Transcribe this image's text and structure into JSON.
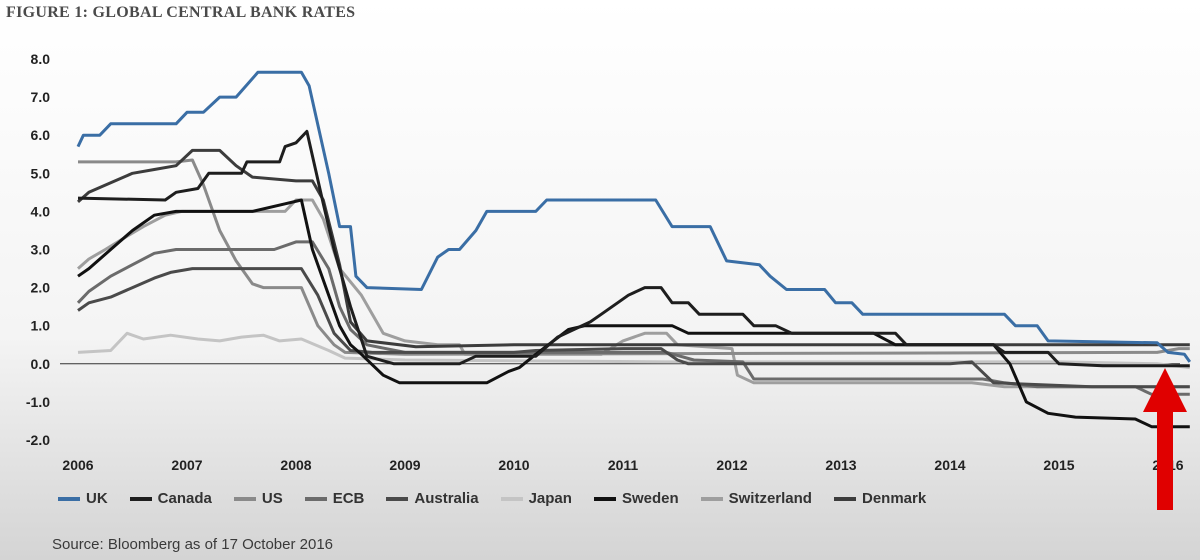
{
  "figure_title": "FIGURE 1: GLOBAL CENTRAL BANK RATES",
  "source": "Source: Bloomberg as of 17 October 2016",
  "colors": {
    "UK": "#3a6ea5",
    "Canada": "#1e1e1e",
    "US": "#8a8a8a",
    "ECB": "#6b6b6b",
    "Australia": "#4a4a4a",
    "Japan": "#c4c4c4",
    "Sweden": "#111111",
    "Switzerland": "#9e9e9e",
    "Denmark": "#3c3c3c",
    "annotation_arrow": "#e00000"
  },
  "chart_data": {
    "type": "line",
    "title": "FIGURE 1: GLOBAL CENTRAL BANK RATES",
    "xlabel": "",
    "ylabel": "",
    "xlim": [
      2006,
      2016.2
    ],
    "ylim": [
      -2,
      8
    ],
    "x_ticks": [
      "2006",
      "2007",
      "2008",
      "2009",
      "2010",
      "2011",
      "2012",
      "2013",
      "2014",
      "2015",
      "2016"
    ],
    "y_ticks": [
      "8.0",
      "7.0",
      "6.0",
      "5.0",
      "4.0",
      "3.0",
      "2.0",
      "1.0",
      "0.0",
      "-1.0",
      "-2.0"
    ],
    "grid": false,
    "legend_position": "bottom",
    "series": [
      {
        "name": "UK",
        "points": [
          [
            2006,
            5.7
          ],
          [
            2006.05,
            6.0
          ],
          [
            2006.2,
            6.0
          ],
          [
            2006.3,
            6.3
          ],
          [
            2006.9,
            6.3
          ],
          [
            2007.0,
            6.6
          ],
          [
            2007.15,
            6.6
          ],
          [
            2007.3,
            7.0
          ],
          [
            2007.45,
            7.0
          ],
          [
            2007.65,
            7.65
          ],
          [
            2008.05,
            7.65
          ],
          [
            2008.12,
            7.3
          ],
          [
            2008.3,
            5.0
          ],
          [
            2008.4,
            3.6
          ],
          [
            2008.5,
            3.6
          ],
          [
            2008.55,
            2.3
          ],
          [
            2008.65,
            2.0
          ],
          [
            2009.15,
            1.95
          ],
          [
            2009.3,
            2.8
          ],
          [
            2009.4,
            3.0
          ],
          [
            2009.5,
            3.0
          ],
          [
            2009.65,
            3.5
          ],
          [
            2009.75,
            4.0
          ],
          [
            2010.2,
            4.0
          ],
          [
            2010.3,
            4.3
          ],
          [
            2011.3,
            4.3
          ],
          [
            2011.45,
            3.6
          ],
          [
            2011.8,
            3.6
          ],
          [
            2011.95,
            2.7
          ],
          [
            2012.25,
            2.6
          ],
          [
            2012.35,
            2.3
          ],
          [
            2012.5,
            1.95
          ],
          [
            2012.85,
            1.95
          ],
          [
            2012.95,
            1.6
          ],
          [
            2013.1,
            1.6
          ],
          [
            2013.2,
            1.3
          ],
          [
            2014.5,
            1.3
          ],
          [
            2014.6,
            1.0
          ],
          [
            2014.8,
            1.0
          ],
          [
            2014.9,
            0.6
          ],
          [
            2015.9,
            0.55
          ],
          [
            2016.0,
            0.3
          ],
          [
            2016.15,
            0.25
          ],
          [
            2016.2,
            0.05
          ]
        ]
      },
      {
        "name": "Canada",
        "points": [
          [
            2006,
            4.35
          ],
          [
            2006.8,
            4.3
          ],
          [
            2006.9,
            4.5
          ],
          [
            2007.1,
            4.6
          ],
          [
            2007.2,
            5.0
          ],
          [
            2007.5,
            5.0
          ],
          [
            2007.55,
            5.3
          ],
          [
            2007.85,
            5.3
          ],
          [
            2007.9,
            5.7
          ],
          [
            2008.0,
            5.8
          ],
          [
            2008.1,
            6.1
          ],
          [
            2008.25,
            4.2
          ],
          [
            2008.35,
            3.0
          ],
          [
            2008.5,
            1.5
          ],
          [
            2008.65,
            0.2
          ],
          [
            2008.9,
            0.0
          ],
          [
            2009.35,
            0.0
          ],
          [
            2009.5,
            0.0
          ],
          [
            2009.65,
            0.2
          ],
          [
            2010.2,
            0.2
          ],
          [
            2010.4,
            0.7
          ],
          [
            2010.55,
            0.9
          ],
          [
            2010.7,
            1.1
          ],
          [
            2010.8,
            1.3
          ],
          [
            2010.95,
            1.6
          ],
          [
            2011.05,
            1.8
          ],
          [
            2011.2,
            2.0
          ],
          [
            2011.35,
            2.0
          ],
          [
            2011.45,
            1.6
          ],
          [
            2011.6,
            1.6
          ],
          [
            2011.7,
            1.3
          ],
          [
            2012.1,
            1.3
          ],
          [
            2012.2,
            1.0
          ],
          [
            2012.4,
            1.0
          ],
          [
            2012.55,
            0.8
          ],
          [
            2013.5,
            0.8
          ],
          [
            2013.6,
            0.5
          ],
          [
            2014.4,
            0.5
          ],
          [
            2014.5,
            0.3
          ],
          [
            2014.9,
            0.3
          ],
          [
            2015.0,
            0.0
          ],
          [
            2015.4,
            -0.05
          ],
          [
            2015.9,
            -0.05
          ],
          [
            2016.2,
            -0.05
          ]
        ]
      },
      {
        "name": "US",
        "points": [
          [
            2006,
            5.3
          ],
          [
            2006.9,
            5.3
          ],
          [
            2007.05,
            5.35
          ],
          [
            2007.15,
            4.7
          ],
          [
            2007.3,
            3.5
          ],
          [
            2007.45,
            2.7
          ],
          [
            2007.6,
            2.1
          ],
          [
            2007.7,
            2.0
          ],
          [
            2008.05,
            2.0
          ],
          [
            2008.2,
            1.0
          ],
          [
            2008.35,
            0.5
          ],
          [
            2008.45,
            0.3
          ],
          [
            2009.0,
            0.25
          ],
          [
            2015.9,
            0.3
          ],
          [
            2016.1,
            0.4
          ],
          [
            2016.2,
            0.4
          ]
        ]
      },
      {
        "name": "ECB",
        "points": [
          [
            2006,
            1.6
          ],
          [
            2006.1,
            1.9
          ],
          [
            2006.3,
            2.3
          ],
          [
            2006.5,
            2.6
          ],
          [
            2006.7,
            2.9
          ],
          [
            2006.9,
            3.0
          ],
          [
            2007.8,
            3.0
          ],
          [
            2008.0,
            3.2
          ],
          [
            2008.15,
            3.2
          ],
          [
            2008.3,
            2.5
          ],
          [
            2008.4,
            1.5
          ],
          [
            2008.5,
            0.9
          ],
          [
            2008.65,
            0.5
          ],
          [
            2009.0,
            0.3
          ],
          [
            2010.0,
            0.3
          ],
          [
            2011.2,
            0.3
          ],
          [
            2011.4,
            0.3
          ],
          [
            2011.65,
            0.1
          ],
          [
            2012.1,
            0.05
          ],
          [
            2012.2,
            -0.4
          ],
          [
            2014.3,
            -0.4
          ],
          [
            2014.5,
            -0.5
          ],
          [
            2014.8,
            -0.6
          ],
          [
            2015.7,
            -0.6
          ],
          [
            2015.85,
            -0.8
          ],
          [
            2016.2,
            -0.8
          ]
        ]
      },
      {
        "name": "Australia",
        "points": [
          [
            2006,
            1.4
          ],
          [
            2006.1,
            1.6
          ],
          [
            2006.3,
            1.75
          ],
          [
            2006.5,
            2.0
          ],
          [
            2006.7,
            2.25
          ],
          [
            2006.85,
            2.4
          ],
          [
            2007.05,
            2.5
          ],
          [
            2007.8,
            2.5
          ],
          [
            2008.05,
            2.5
          ],
          [
            2008.2,
            1.8
          ],
          [
            2008.35,
            0.8
          ],
          [
            2008.5,
            0.35
          ],
          [
            2008.7,
            0.3
          ],
          [
            2010.0,
            0.3
          ],
          [
            2010.2,
            0.35
          ],
          [
            2011.0,
            0.4
          ],
          [
            2011.35,
            0.4
          ],
          [
            2011.5,
            0.1
          ],
          [
            2011.6,
            0.0
          ],
          [
            2014.0,
            0.0
          ],
          [
            2014.2,
            0.05
          ],
          [
            2014.4,
            -0.5
          ],
          [
            2015.3,
            -0.6
          ],
          [
            2015.85,
            -0.6
          ],
          [
            2016.2,
            -0.6
          ]
        ]
      },
      {
        "name": "Japan",
        "points": [
          [
            2006,
            0.3
          ],
          [
            2006.3,
            0.35
          ],
          [
            2006.45,
            0.8
          ],
          [
            2006.6,
            0.65
          ],
          [
            2006.85,
            0.75
          ],
          [
            2007.1,
            0.65
          ],
          [
            2007.3,
            0.6
          ],
          [
            2007.5,
            0.7
          ],
          [
            2007.7,
            0.75
          ],
          [
            2007.85,
            0.6
          ],
          [
            2008.05,
            0.65
          ],
          [
            2008.3,
            0.35
          ],
          [
            2008.45,
            0.15
          ],
          [
            2009.0,
            0.1
          ],
          [
            2011.4,
            0.05
          ],
          [
            2012.2,
            0.05
          ],
          [
            2014.0,
            0.05
          ],
          [
            2015.0,
            0.05
          ],
          [
            2015.9,
            0.0
          ],
          [
            2016.2,
            -0.1
          ]
        ]
      },
      {
        "name": "Sweden",
        "points": [
          [
            2006,
            2.3
          ],
          [
            2006.1,
            2.5
          ],
          [
            2006.3,
            3.0
          ],
          [
            2006.5,
            3.5
          ],
          [
            2006.7,
            3.9
          ],
          [
            2006.9,
            4.0
          ],
          [
            2007.6,
            4.0
          ],
          [
            2007.9,
            4.2
          ],
          [
            2008.05,
            4.3
          ],
          [
            2008.15,
            3.0
          ],
          [
            2008.3,
            1.8
          ],
          [
            2008.4,
            1.0
          ],
          [
            2008.5,
            0.5
          ],
          [
            2008.6,
            0.25
          ],
          [
            2008.8,
            -0.3
          ],
          [
            2008.95,
            -0.5
          ],
          [
            2009.75,
            -0.5
          ],
          [
            2009.95,
            -0.2
          ],
          [
            2010.05,
            -0.1
          ],
          [
            2010.2,
            0.25
          ],
          [
            2010.5,
            0.9
          ],
          [
            2010.65,
            1.0
          ],
          [
            2011.45,
            1.0
          ],
          [
            2011.6,
            0.8
          ],
          [
            2013.3,
            0.8
          ],
          [
            2013.5,
            0.5
          ],
          [
            2014.4,
            0.5
          ],
          [
            2014.55,
            0.0
          ],
          [
            2014.7,
            -1.0
          ],
          [
            2014.9,
            -1.3
          ],
          [
            2015.15,
            -1.4
          ],
          [
            2015.7,
            -1.45
          ],
          [
            2015.85,
            -1.65
          ],
          [
            2016.2,
            -1.65
          ]
        ]
      },
      {
        "name": "Switzerland",
        "points": [
          [
            2006,
            2.5
          ],
          [
            2006.1,
            2.75
          ],
          [
            2006.25,
            3.0
          ],
          [
            2006.45,
            3.35
          ],
          [
            2006.6,
            3.6
          ],
          [
            2006.8,
            3.9
          ],
          [
            2006.95,
            4.0
          ],
          [
            2007.3,
            4.0
          ],
          [
            2007.9,
            4.0
          ],
          [
            2008.0,
            4.3
          ],
          [
            2008.15,
            4.3
          ],
          [
            2008.25,
            3.8
          ],
          [
            2008.4,
            2.5
          ],
          [
            2008.6,
            1.8
          ],
          [
            2008.8,
            0.8
          ],
          [
            2009.0,
            0.6
          ],
          [
            2009.3,
            0.5
          ],
          [
            2009.5,
            0.5
          ],
          [
            2009.55,
            0.25
          ],
          [
            2010.8,
            0.25
          ],
          [
            2011.0,
            0.6
          ],
          [
            2011.2,
            0.8
          ],
          [
            2011.4,
            0.8
          ],
          [
            2011.5,
            0.5
          ],
          [
            2012.0,
            0.4
          ],
          [
            2012.05,
            -0.3
          ],
          [
            2012.2,
            -0.5
          ],
          [
            2014.2,
            -0.5
          ],
          [
            2014.5,
            -0.6
          ],
          [
            2015.1,
            -0.6
          ],
          [
            2016.2,
            -0.6
          ]
        ]
      },
      {
        "name": "Denmark",
        "points": [
          [
            2006,
            4.25
          ],
          [
            2006.1,
            4.5
          ],
          [
            2006.3,
            4.75
          ],
          [
            2006.5,
            5.0
          ],
          [
            2006.7,
            5.1
          ],
          [
            2006.9,
            5.2
          ],
          [
            2007.05,
            5.6
          ],
          [
            2007.3,
            5.6
          ],
          [
            2007.45,
            5.2
          ],
          [
            2007.6,
            4.9
          ],
          [
            2008.0,
            4.8
          ],
          [
            2008.15,
            4.8
          ],
          [
            2008.25,
            4.3
          ],
          [
            2008.4,
            2.6
          ],
          [
            2008.5,
            1.1
          ],
          [
            2008.65,
            0.6
          ],
          [
            2009.1,
            0.45
          ],
          [
            2010.0,
            0.5
          ],
          [
            2011.5,
            0.5
          ],
          [
            2012.0,
            0.5
          ],
          [
            2014.7,
            0.5
          ],
          [
            2016.2,
            0.5
          ]
        ]
      }
    ]
  }
}
